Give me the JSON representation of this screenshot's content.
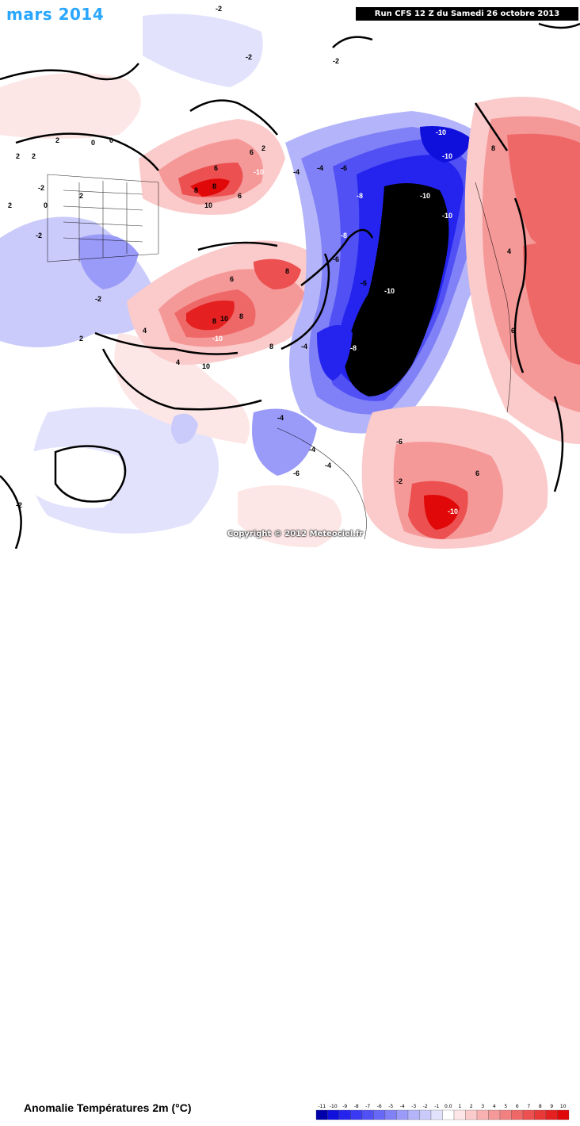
{
  "title": "mars 2014",
  "run_label": "Run CFS 12 Z du Samedi 26 octobre 2013",
  "copyright": "Copyright © 2012 Meteociel.fr",
  "subtitle": "Anomalie Températures 2m (°C)",
  "colors": {
    "title": "#2aa7ff",
    "very_cold": "#000000",
    "cold_blue": "#1f1fe6",
    "warm_red": "#e83838"
  },
  "legend": {
    "labels": [
      "-11",
      "-10",
      "-9",
      "-8",
      "-7",
      "-6",
      "-5",
      "-4",
      "-3",
      "-2",
      "-1",
      "0.0",
      "1",
      "2",
      "3",
      "4",
      "5",
      "6",
      "7",
      "8",
      "9",
      "10"
    ],
    "colors": [
      "#0000aa",
      "#1010dd",
      "#2424ee",
      "#3a3af2",
      "#5050f5",
      "#6868f6",
      "#8080f7",
      "#9a9af8",
      "#b4b4fa",
      "#cacafb",
      "#e2e2fd",
      "#ffffff",
      "#fde6e6",
      "#fbcaca",
      "#f8b0b0",
      "#f59898",
      "#f28080",
      "#ef6868",
      "#ec5050",
      "#e83838",
      "#e42020",
      "#e00808"
    ]
  },
  "map_labels": [
    "-2",
    "-2",
    "2",
    "0",
    "2",
    "2",
    "0",
    "-2",
    "-2",
    "0",
    "2",
    "-2",
    "2",
    "2",
    "6",
    "6",
    "8",
    "10",
    "-10",
    "8",
    "6",
    "8",
    "6",
    "8",
    "-4",
    "-6",
    "-8",
    "-10",
    "-10",
    "-10",
    "-10",
    "-8",
    "-10",
    "-6",
    "-4",
    "-6",
    "-4",
    "8",
    "8",
    "10",
    "-10",
    "10",
    "4",
    "-8",
    "-4",
    "-6",
    "-4",
    "-2",
    "6",
    "8",
    "-10",
    "-2",
    "4",
    "6",
    "-4",
    "-6",
    "4",
    "-2",
    "2"
  ]
}
